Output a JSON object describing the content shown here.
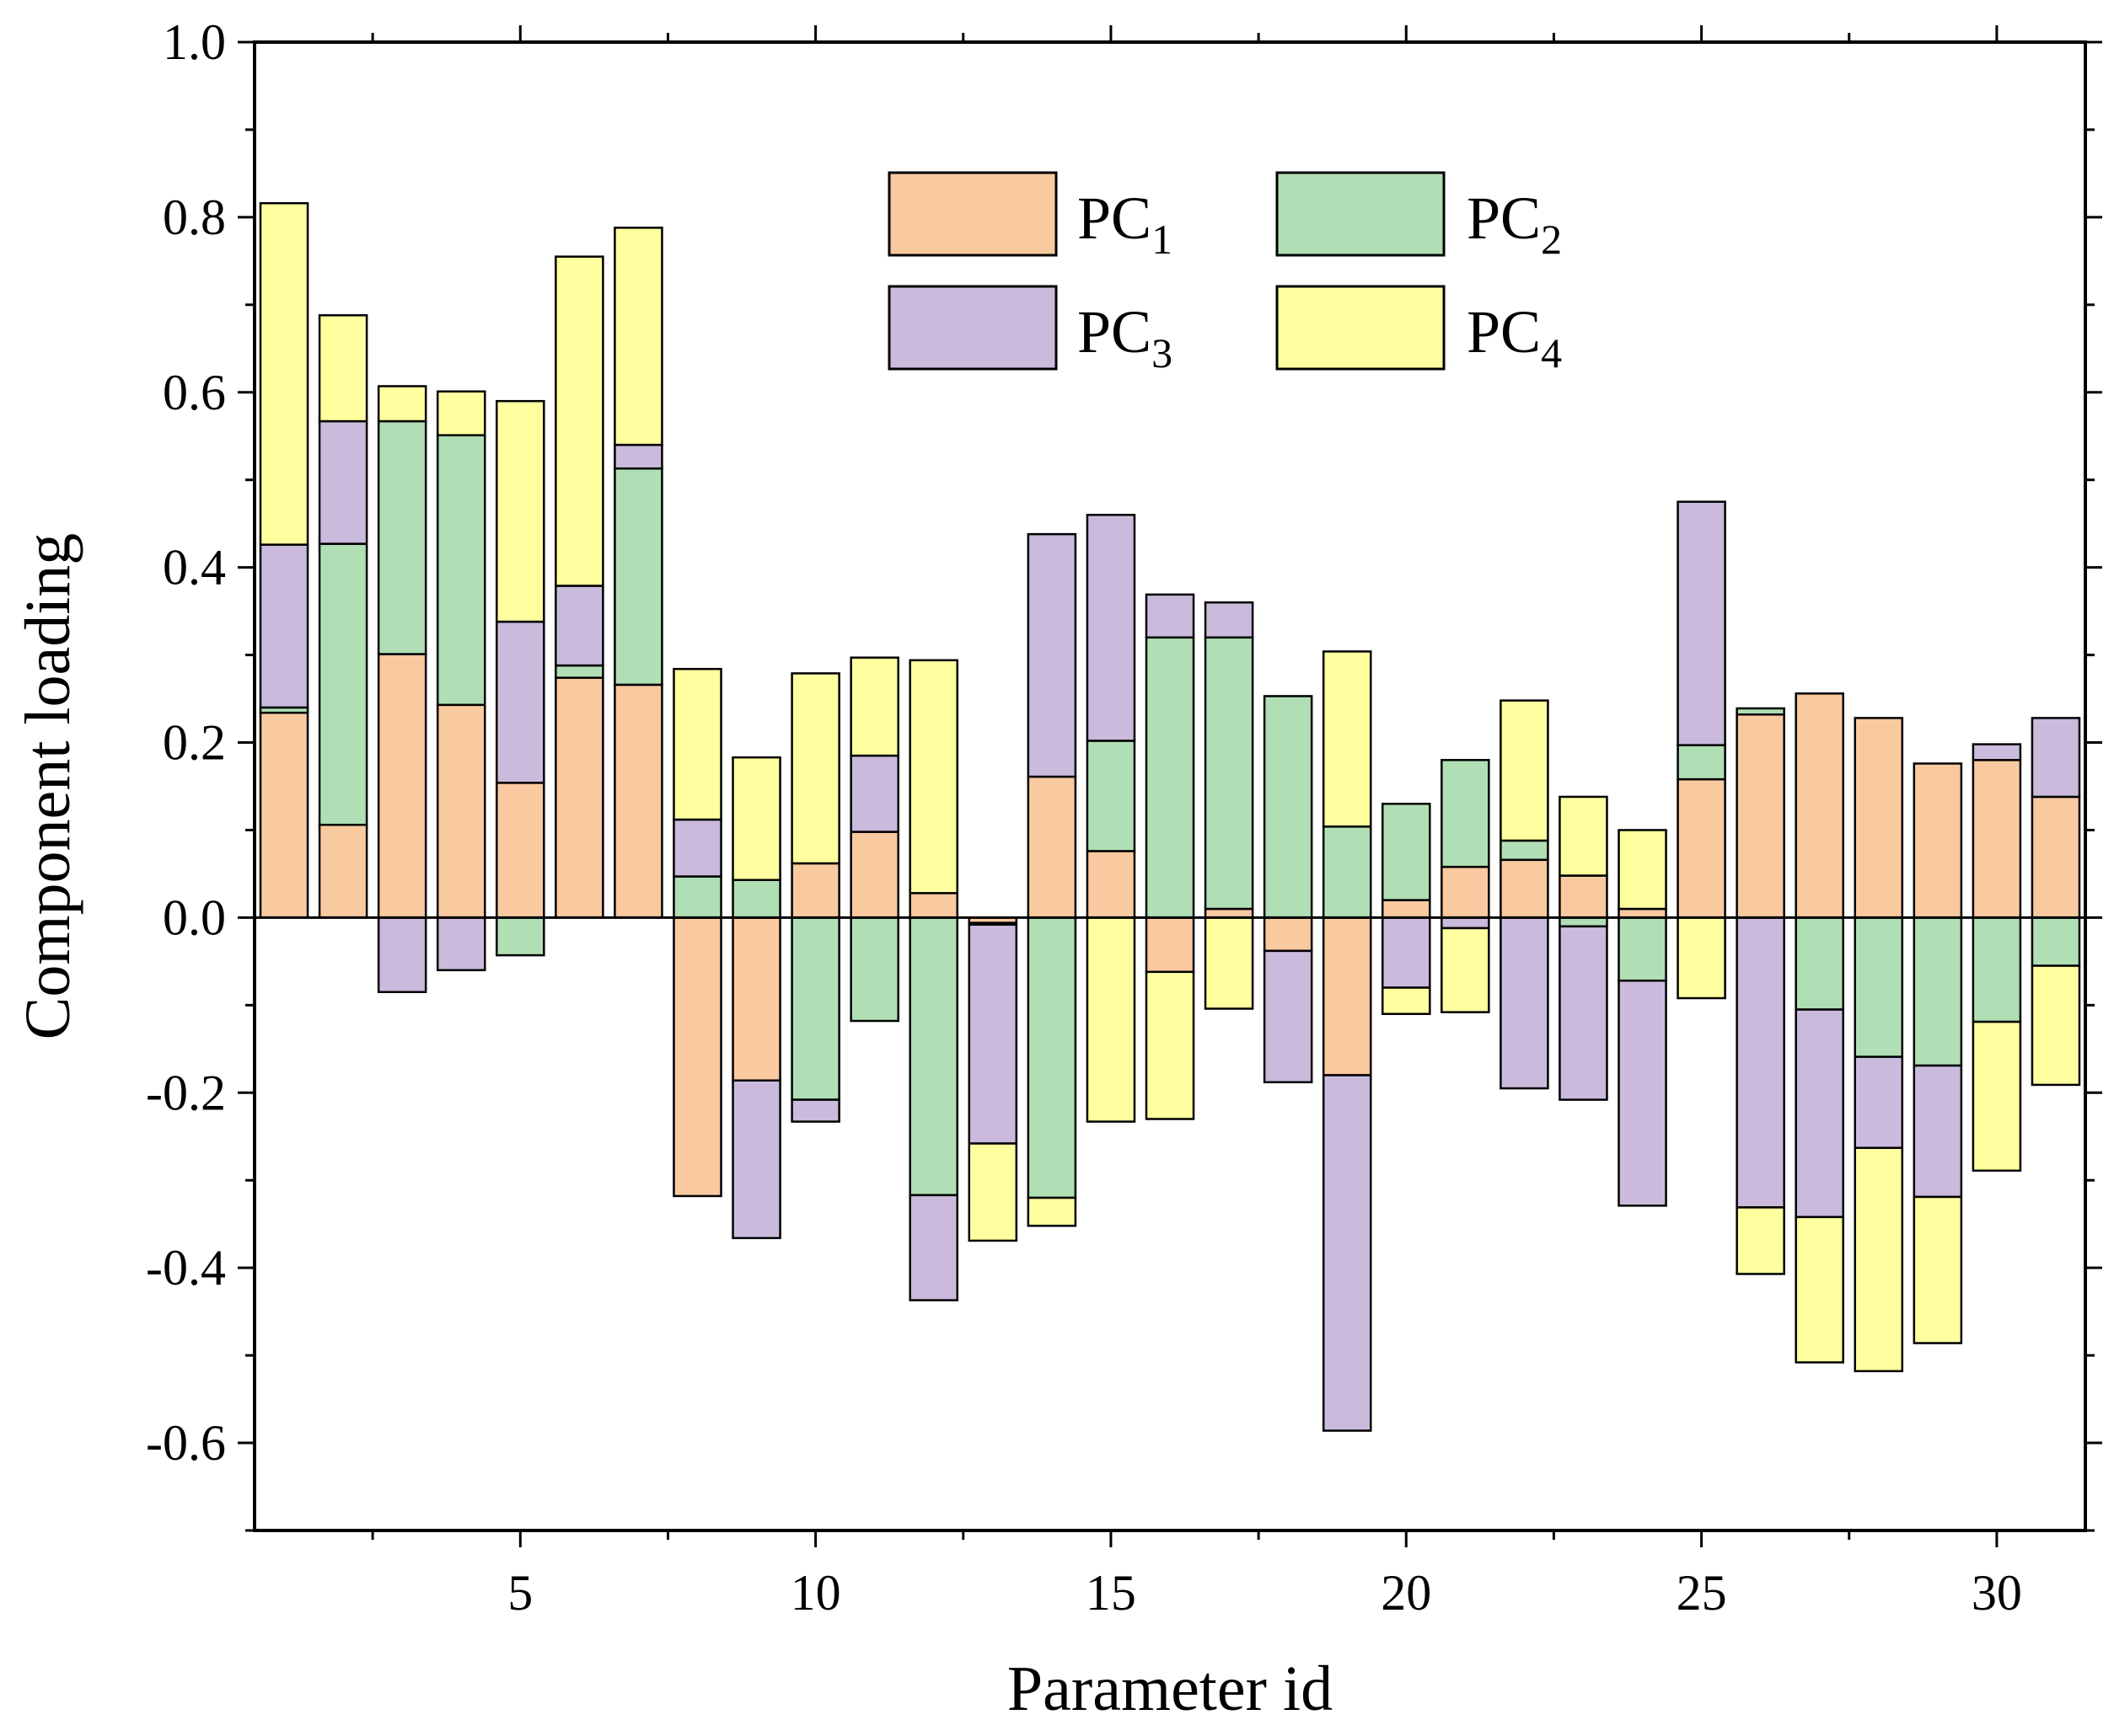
{
  "chart_data": {
    "type": "bar",
    "subtype": "stacked (per-component signed bars, signed stacking)",
    "title": "",
    "xlabel": "Parameter id",
    "ylabel": "Component loading",
    "xlim": [
      0.5,
      31.5
    ],
    "ylim": [
      -0.7,
      1.0
    ],
    "x_ticks": [
      5,
      10,
      15,
      20,
      25,
      30
    ],
    "y_ticks": [
      -0.6,
      -0.4,
      -0.2,
      0.0,
      0.2,
      0.4,
      0.6,
      0.8,
      1.0
    ],
    "y_tick_labels": [
      "-0.6",
      "-0.4",
      "-0.2",
      "0.0",
      "0.2",
      "0.4",
      "0.6",
      "0.8",
      "1.0"
    ],
    "x_tick_labels": [
      "5",
      "10",
      "15",
      "20",
      "25",
      "30"
    ],
    "grid": false,
    "legend_position": "top-center",
    "x": [
      1,
      2,
      3,
      4,
      5,
      6,
      7,
      8,
      9,
      10,
      11,
      12,
      13,
      14,
      15,
      16,
      17,
      18,
      19,
      20,
      21,
      22,
      23,
      24,
      25,
      26,
      27,
      28,
      29,
      30,
      31
    ],
    "series": [
      {
        "name": "PC",
        "subscript": "1",
        "color": "#F9C9A0",
        "values": [
          0.234,
          0.106,
          0.301,
          0.243,
          0.154,
          0.274,
          0.266,
          -0.318,
          -0.186,
          0.062,
          0.098,
          0.028,
          -0.006,
          0.161,
          0.076,
          -0.062,
          0.01,
          -0.038,
          -0.18,
          0.02,
          0.058,
          0.066,
          0.048,
          0.01,
          0.158,
          0.232,
          0.256,
          0.228,
          0.176,
          0.18,
          0.138
        ]
      },
      {
        "name": "PC",
        "subscript": "2",
        "color": "#B0DFB5",
        "values": [
          0.006,
          0.321,
          0.266,
          0.308,
          -0.043,
          0.014,
          0.247,
          0.047,
          0.043,
          -0.208,
          -0.118,
          -0.317,
          -0.002,
          -0.32,
          0.126,
          0.32,
          0.31,
          0.253,
          0.104,
          0.11,
          0.122,
          0.022,
          -0.01,
          -0.072,
          0.039,
          0.007,
          -0.105,
          -0.159,
          -0.169,
          -0.119,
          -0.055
        ]
      },
      {
        "name": "PC",
        "subscript": "3",
        "color": "#CABBDD",
        "values": [
          0.186,
          0.14,
          -0.085,
          -0.06,
          0.184,
          0.091,
          0.027,
          0.065,
          -0.18,
          -0.025,
          0.087,
          -0.12,
          -0.25,
          0.277,
          0.258,
          0.049,
          0.04,
          -0.15,
          -0.406,
          -0.08,
          -0.012,
          -0.195,
          -0.198,
          -0.257,
          0.278,
          -0.331,
          -0.237,
          -0.104,
          -0.15,
          0.018,
          0.09
        ]
      },
      {
        "name": "PC",
        "subscript": "4",
        "color": "#FFFFA0",
        "values": [
          0.39,
          0.121,
          0.04,
          0.05,
          0.252,
          0.376,
          0.248,
          0.172,
          0.14,
          0.217,
          0.112,
          0.266,
          -0.111,
          -0.032,
          -0.233,
          -0.168,
          -0.104,
          0.0,
          0.2,
          -0.03,
          -0.096,
          0.16,
          0.09,
          0.09,
          -0.092,
          -0.076,
          -0.166,
          -0.255,
          -0.167,
          -0.17,
          -0.136
        ]
      }
    ]
  }
}
